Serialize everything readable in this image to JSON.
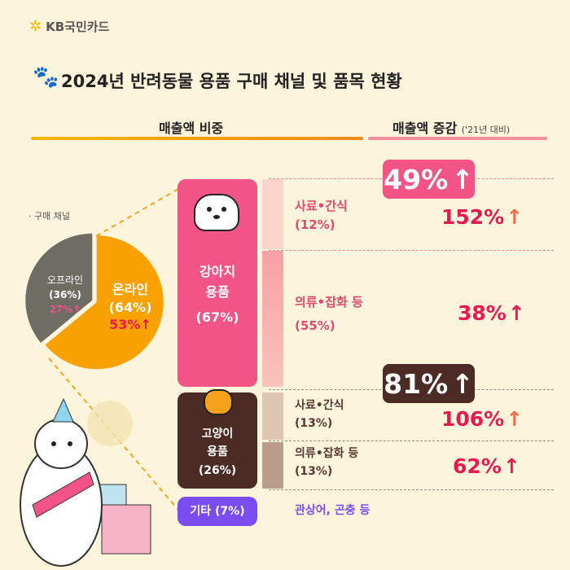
{
  "brand": "KB국민카드",
  "title": "2024년 반려동물 용품 구매 채널 및 품목 현황",
  "headers": {
    "share": "매출액 비중",
    "growth": "매출액 증감",
    "growth_note": "('21년 대비)"
  },
  "channel_label": "· 구매 채널",
  "chart_data": [
    {
      "type": "pie",
      "title": "",
      "slices": [
        {
          "label": "온라인",
          "value": 64,
          "value_label": "(64%)",
          "growth": "53%",
          "color": "#f9a100"
        },
        {
          "label": "오프라인",
          "value": 36,
          "value_label": "(36%)",
          "growth": "27%",
          "color": "#6d6d64"
        }
      ]
    },
    {
      "type": "bar",
      "categories": [
        "강아지 용품",
        "고양이 용품",
        "기타"
      ],
      "values": [
        67,
        26,
        7
      ],
      "labels": {
        "dog": [
          "강아지",
          "용품",
          "(67%)"
        ],
        "cat": [
          "고양이",
          "용품",
          "(26%)"
        ],
        "etc": "기타 (7%)"
      },
      "growth": {
        "dog": "49%",
        "cat": "81%"
      },
      "subcategories": [
        {
          "group": "dog",
          "name": "사료•간식",
          "share": 12,
          "share_label": "(12%)",
          "growth": "152%"
        },
        {
          "group": "dog",
          "name": "의류•잡화 등",
          "share": 55,
          "share_label": "(55%)",
          "growth": "38%"
        },
        {
          "group": "cat",
          "name": "사료•간식",
          "share": 13,
          "share_label": "(13%)",
          "growth": "106%"
        },
        {
          "group": "cat",
          "name": "의류•잡화 등",
          "share": 13,
          "share_label": "(13%)",
          "growth": "62%"
        },
        {
          "group": "etc",
          "name": "관상어, 곤충 등"
        }
      ]
    }
  ],
  "colors": {
    "dog": "#f25585",
    "cat": "#4b2b24",
    "etc": "#7b4cf0",
    "up": "#e8194f"
  }
}
